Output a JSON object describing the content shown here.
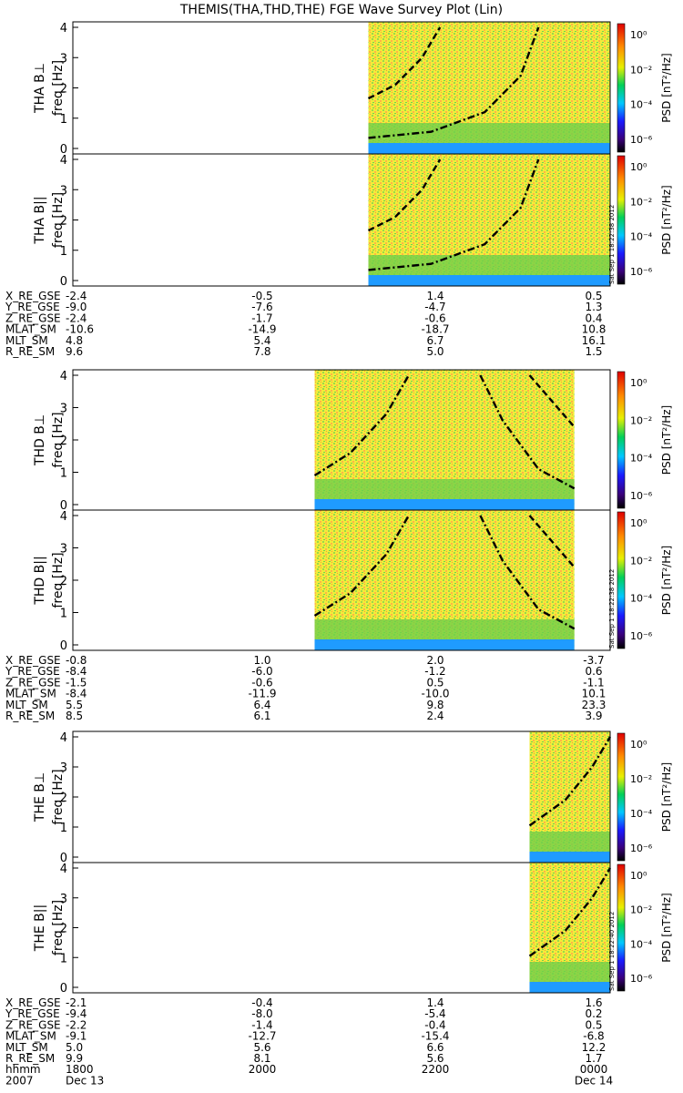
{
  "title": "THEMIS(THA,THD,THE) FGE Wave Survey Plot (Lin)",
  "colorbar": {
    "label": "PSD [nT²/Hz]",
    "ticks": [
      "10⁰",
      "10⁻²",
      "10⁻⁴",
      "10⁻⁶"
    ],
    "colors": [
      "#000000",
      "#3a007a",
      "#1a1aff",
      "#00c8ff",
      "#00d05a",
      "#e8f000",
      "#ff8c00",
      "#e00000"
    ]
  },
  "stamps": [
    "Sat Sep 1 18:22:38 2012",
    "Sat Sep 1 18:22:38 2012",
    "Sat Sep 1 18:22:40 2012"
  ],
  "chart_data": [
    {
      "type": "heatmap",
      "probe": "THA",
      "panels": [
        {
          "ylabel": "THA B⊥",
          "unit": "freq [Hz]"
        },
        {
          "ylabel": "THA B||",
          "unit": "freq [Hz]"
        }
      ],
      "yticks": [
        "0",
        "1",
        "2",
        "3",
        "4"
      ],
      "ylim": [
        0,
        4
      ],
      "x_coverage_hours": [
        21.3,
        24.0
      ],
      "curves": [
        {
          "style": "dash-dot",
          "points": [
            [
              21.3,
              0.35
            ],
            [
              22.0,
              0.55
            ],
            [
              22.6,
              1.2
            ],
            [
              23.0,
              2.4
            ],
            [
              23.2,
              4.0
            ]
          ]
        },
        {
          "style": "dashed",
          "points": [
            [
              21.3,
              1.65
            ],
            [
              21.6,
              2.1
            ],
            [
              21.9,
              3.0
            ],
            [
              22.1,
              4.0
            ]
          ]
        }
      ],
      "ephemeris": {
        "labels": [
          "X_RE_GSE",
          "Y_RE_GSE",
          "Z_RE_GSE",
          "MLAT_SM",
          "MLT_SM",
          "R_RE_SM"
        ],
        "rows": [
          [
            "-2.4",
            "-0.5",
            "1.4",
            "0.5"
          ],
          [
            "-9.0",
            "-7.6",
            "-4.7",
            "1.3"
          ],
          [
            "-2.4",
            "-1.7",
            "-0.6",
            "0.4"
          ],
          [
            "-10.6",
            "-14.9",
            "-18.7",
            "10.8"
          ],
          [
            "4.8",
            "5.4",
            "6.7",
            "16.1"
          ],
          [
            "9.6",
            "7.8",
            "5.0",
            "1.5"
          ]
        ]
      }
    },
    {
      "type": "heatmap",
      "probe": "THD",
      "panels": [
        {
          "ylabel": "THD B⊥",
          "unit": "freq [Hz]"
        },
        {
          "ylabel": "THD B||",
          "unit": "freq [Hz]"
        }
      ],
      "yticks": [
        "0",
        "1",
        "2",
        "3",
        "4"
      ],
      "ylim": [
        0,
        4
      ],
      "x_coverage_hours": [
        20.7,
        23.6
      ],
      "curves": [
        {
          "style": "dash-dot",
          "points": [
            [
              20.7,
              0.9
            ],
            [
              21.1,
              1.6
            ],
            [
              21.5,
              2.8
            ],
            [
              21.75,
              4.0
            ]
          ]
        },
        {
          "style": "dash-dot",
          "points": [
            [
              22.55,
              4.0
            ],
            [
              22.8,
              2.6
            ],
            [
              23.2,
              1.1
            ],
            [
              23.6,
              0.5
            ]
          ]
        },
        {
          "style": "dashed",
          "points": [
            [
              23.1,
              4.0
            ],
            [
              23.35,
              3.2
            ],
            [
              23.6,
              2.4
            ]
          ]
        }
      ],
      "ephemeris": {
        "labels": [
          "X_RE_GSE",
          "Y_RE_GSE",
          "Z_RE_GSE",
          "MLAT_SM",
          "MLT_SM",
          "R_RE_SM"
        ],
        "rows": [
          [
            "-0.8",
            "1.0",
            "2.0",
            "-3.7"
          ],
          [
            "-8.4",
            "-6.0",
            "-1.2",
            "0.6"
          ],
          [
            "-1.5",
            "-0.6",
            "0.5",
            "-1.1"
          ],
          [
            "-8.4",
            "-11.9",
            "-10.0",
            "10.1"
          ],
          [
            "5.5",
            "6.4",
            "9.8",
            "23.3"
          ],
          [
            "8.5",
            "6.1",
            "2.4",
            "3.9"
          ]
        ]
      }
    },
    {
      "type": "heatmap",
      "probe": "THE",
      "panels": [
        {
          "ylabel": "THE B⊥",
          "unit": "freq [Hz]"
        },
        {
          "ylabel": "THE B||",
          "unit": "freq [Hz]"
        }
      ],
      "yticks": [
        "0",
        "1",
        "2",
        "3",
        "4"
      ],
      "ylim": [
        0,
        4
      ],
      "x_coverage_hours": [
        23.1,
        24.0
      ],
      "curves": [
        {
          "style": "dash-dot",
          "points": [
            [
              23.1,
              1.05
            ],
            [
              23.5,
              1.9
            ],
            [
              23.8,
              3.0
            ],
            [
              24.0,
              4.0
            ]
          ]
        }
      ],
      "ephemeris": {
        "labels": [
          "X_RE_GSE",
          "Y_RE_GSE",
          "Z_RE_GSE",
          "MLAT_SM",
          "MLT_SM",
          "R_RE_SM",
          "hhmm",
          "2007"
        ],
        "rows": [
          [
            "-2.1",
            "-0.4",
            "1.4",
            "1.6"
          ],
          [
            "-9.4",
            "-8.0",
            "-5.4",
            "0.2"
          ],
          [
            "-2.2",
            "-1.4",
            "-0.4",
            "0.5"
          ],
          [
            "-9.1",
            "-12.7",
            "-15.4",
            "-6.8"
          ],
          [
            "5.0",
            "5.6",
            "6.6",
            "12.2"
          ],
          [
            "9.9",
            "8.1",
            "5.6",
            "1.7"
          ],
          [
            "1800",
            "2000",
            "2200",
            "0000"
          ],
          [
            "Dec 13",
            "",
            "",
            "Dec 14"
          ]
        ]
      }
    }
  ]
}
